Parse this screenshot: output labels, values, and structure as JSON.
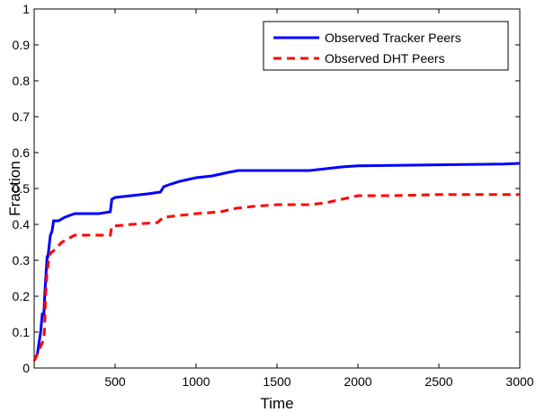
{
  "chart_data": {
    "type": "line",
    "xlabel": "Time",
    "ylabel": "Fraction",
    "xlim": [
      0,
      3000
    ],
    "ylim": [
      0,
      1
    ],
    "x_ticks": [
      500,
      1000,
      1500,
      2000,
      2500,
      3000
    ],
    "x_tick_labels": [
      "500",
      "1000",
      "1500",
      "2000",
      "2500",
      "3000"
    ],
    "y_ticks": [
      0,
      0.1,
      0.2,
      0.3,
      0.4,
      0.5,
      0.6,
      0.7,
      0.8,
      0.9,
      1
    ],
    "y_tick_labels": [
      "0",
      "0.1",
      "0.2",
      "0.3",
      "0.4",
      "0.5",
      "0.6",
      "0.7",
      "0.8",
      "0.9",
      "1"
    ],
    "grid": false,
    "legend_position": "top-right",
    "series": [
      {
        "name": "Observed Tracker Peers",
        "color": "#0000ff",
        "line_style": "solid",
        "x": [
          0,
          20,
          30,
          40,
          50,
          60,
          65,
          70,
          80,
          85,
          95,
          100,
          110,
          120,
          130,
          140,
          150,
          190,
          250,
          300,
          400,
          470,
          480,
          500,
          600,
          700,
          780,
          800,
          830,
          900,
          1000,
          1100,
          1200,
          1260,
          1300,
          1500,
          1700,
          1800,
          1900,
          2000,
          2500,
          2900,
          3000
        ],
        "y": [
          0.02,
          0.04,
          0.07,
          0.1,
          0.15,
          0.15,
          0.2,
          0.24,
          0.31,
          0.31,
          0.35,
          0.37,
          0.38,
          0.41,
          0.41,
          0.41,
          0.41,
          0.42,
          0.43,
          0.43,
          0.43,
          0.435,
          0.47,
          0.475,
          0.48,
          0.485,
          0.49,
          0.505,
          0.51,
          0.52,
          0.53,
          0.535,
          0.545,
          0.55,
          0.55,
          0.55,
          0.55,
          0.555,
          0.56,
          0.563,
          0.566,
          0.568,
          0.57
        ]
      },
      {
        "name": "Observed DHT Peers",
        "color": "#ff0000",
        "line_style": "dashed",
        "x": [
          0,
          20,
          40,
          50,
          60,
          65,
          70,
          80,
          90,
          100,
          130,
          170,
          250,
          350,
          470,
          480,
          600,
          760,
          800,
          900,
          1000,
          1150,
          1250,
          1350,
          1500,
          1700,
          1800,
          1900,
          2000,
          2200,
          2500,
          3000
        ],
        "y": [
          0.02,
          0.04,
          0.06,
          0.07,
          0.08,
          0.12,
          0.2,
          0.27,
          0.3,
          0.32,
          0.33,
          0.35,
          0.37,
          0.37,
          0.37,
          0.395,
          0.4,
          0.405,
          0.42,
          0.425,
          0.43,
          0.435,
          0.445,
          0.45,
          0.455,
          0.455,
          0.46,
          0.47,
          0.48,
          0.48,
          0.483,
          0.483
        ]
      }
    ]
  }
}
